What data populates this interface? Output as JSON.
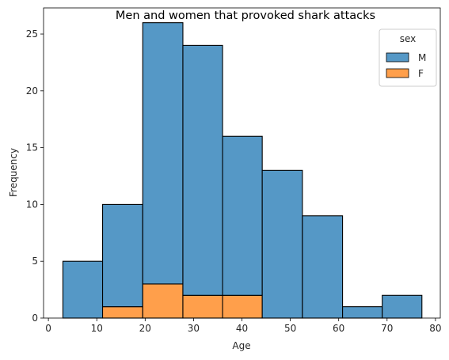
{
  "chart_data": {
    "type": "bar",
    "stacked": true,
    "title": "Men and women that provoked shark attacks",
    "xlabel": "Age",
    "ylabel": "Frequency",
    "xlim": [
      -1,
      81
    ],
    "ylim": [
      0,
      27.3
    ],
    "xticks": [
      0,
      10,
      20,
      30,
      40,
      50,
      60,
      70,
      80
    ],
    "yticks": [
      0,
      5,
      10,
      15,
      20,
      25
    ],
    "bin_edges": [
      3,
      11.2,
      19.5,
      27.8,
      36,
      44.2,
      52.5,
      60.8,
      69,
      77.2
    ],
    "series": [
      {
        "name": "M",
        "color": "#4c92c3",
        "values": [
          5,
          9,
          23,
          22,
          14,
          13,
          9,
          1,
          2
        ]
      },
      {
        "name": "F",
        "color": "#ff9a41",
        "values": [
          0,
          1,
          3,
          2,
          2,
          0,
          0,
          0,
          0
        ]
      }
    ],
    "totals": [
      5,
      10,
      26,
      24,
      16,
      13,
      9,
      1,
      2
    ],
    "legend": {
      "title": "sex",
      "position": "top-right",
      "entries": [
        "M",
        "F"
      ]
    },
    "grid": false
  }
}
